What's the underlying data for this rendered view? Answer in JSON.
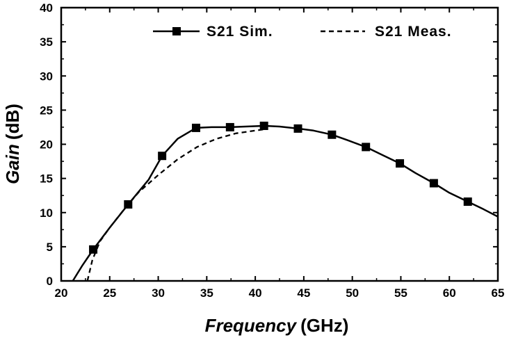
{
  "chart_data": {
    "type": "line",
    "title": "",
    "xlabel_italic": "Frequency",
    "xlabel_unit": "(GHz)",
    "ylabel_italic": "Gain",
    "ylabel_unit": "(dB)",
    "xlim": [
      20,
      65
    ],
    "ylim": [
      0,
      40
    ],
    "xticks": [
      20,
      25,
      30,
      35,
      40,
      45,
      50,
      55,
      60,
      65
    ],
    "yticks": [
      0,
      5,
      10,
      15,
      20,
      25,
      30,
      35,
      40
    ],
    "legend_position": "top-right",
    "series": [
      {
        "name": "S21 Sim.",
        "style": "solid-square-markers",
        "x": [
          21.2,
          22.2,
          23.3,
          25.0,
          26.9,
          29.0,
          30.4,
          32.0,
          33.9,
          35.5,
          37.4,
          39.0,
          40.9,
          42.5,
          44.4,
          46.0,
          47.9,
          49.5,
          51.4,
          53.0,
          54.9,
          56.5,
          58.4,
          60.0,
          61.9,
          63.5,
          65.0
        ],
        "values": [
          0.0,
          2.3,
          4.6,
          7.8,
          11.2,
          14.8,
          18.3,
          20.8,
          22.4,
          22.5,
          22.5,
          22.6,
          22.7,
          22.6,
          22.3,
          22.0,
          21.4,
          20.6,
          19.6,
          18.5,
          17.2,
          15.8,
          14.3,
          12.9,
          11.6,
          10.5,
          9.4
        ],
        "markers_x": [
          23.3,
          26.9,
          30.4,
          33.9,
          37.4,
          40.9,
          44.4,
          47.9,
          51.4,
          54.9,
          58.4,
          61.9
        ],
        "markers_y": [
          4.6,
          11.2,
          18.3,
          22.4,
          22.5,
          22.7,
          22.3,
          21.4,
          19.6,
          17.2,
          14.3,
          11.6
        ]
      },
      {
        "name": "S21 Meas.",
        "style": "dashed",
        "x": [
          22.7,
          23.2,
          24.0,
          25.0,
          26.5,
          28.0,
          30.0,
          32.0,
          34.0,
          36.0,
          38.0,
          40.0,
          41.0
        ],
        "values": [
          0.0,
          3.0,
          5.8,
          7.8,
          10.5,
          13.0,
          15.5,
          17.8,
          19.6,
          20.8,
          21.6,
          22.0,
          22.2
        ]
      }
    ]
  }
}
